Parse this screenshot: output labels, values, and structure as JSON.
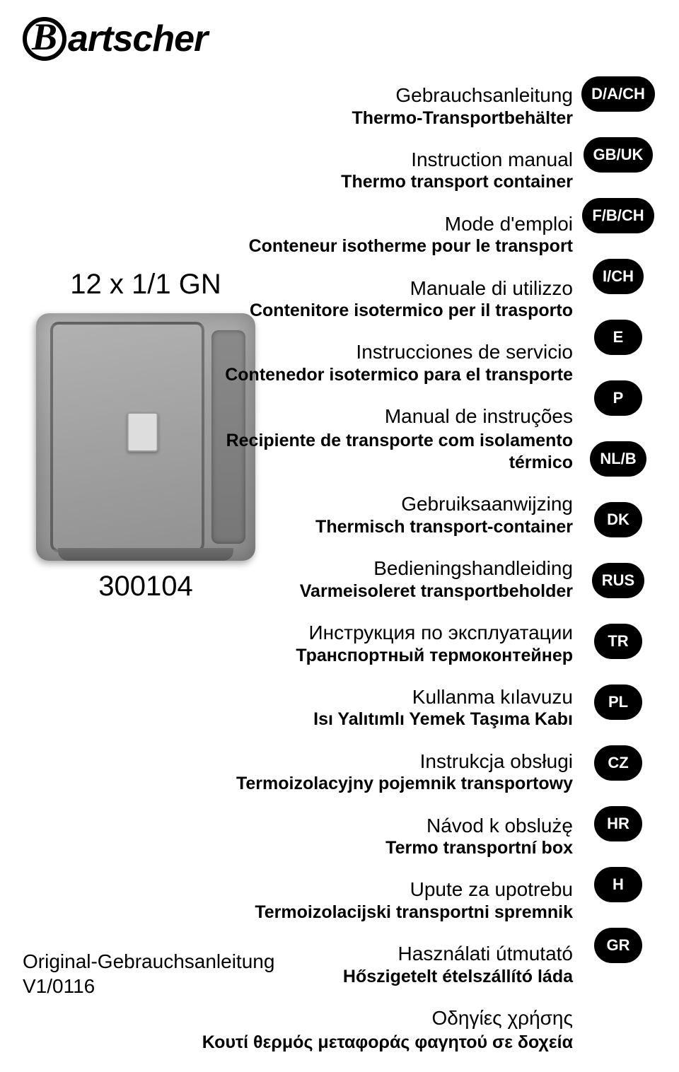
{
  "logo": {
    "mark": "B",
    "word": "artscher"
  },
  "product": {
    "model": "12 x 1/1 GN",
    "sku": "300104"
  },
  "footer": {
    "line1": "Original-Gebrauchsanleitung",
    "line2": "V1/0116"
  },
  "pills": [
    "D/A/CH",
    "GB/UK",
    "F/B/CH",
    "I/CH",
    "E",
    "P",
    "NL/B",
    "DK",
    "RUS",
    "TR",
    "PL",
    "CZ",
    "HR",
    "H",
    "GR"
  ],
  "colors": {
    "bg": "#ffffff",
    "text": "#000000",
    "pill_bg": "#000000",
    "pill_text": "#ffffff"
  },
  "fonts": {
    "body_family": "Arial",
    "logo_mark_family": "Georgia",
    "title_size": 28,
    "bold_size": 25,
    "pill_size": 22,
    "model_size": 40
  },
  "languages": [
    {
      "line1": "Gebrauchsanleitung",
      "line2": "Thermo-Transportbehälter"
    },
    {
      "line1": "Instruction manual",
      "line2": "Thermo transport container"
    },
    {
      "line1": "Mode d'emploi",
      "line2": "Conteneur isotherme pour le transport"
    },
    {
      "line1": "Manuale di utilizzo",
      "line2": "Contenitore isotermico per il trasporto"
    },
    {
      "line1": "Instrucciones de servicio",
      "line2": "Contenedor isotermico para el transporte"
    },
    {
      "line1": "Manual de instruções",
      "line2": "Recipiente de transporte com isolamento térmico"
    },
    {
      "line1": "Gebruiksaanwijzing",
      "line2": "Thermisch transport-container"
    },
    {
      "line1": "Bedieningshandleiding",
      "line2": "Varmeisoleret transportbeholder"
    },
    {
      "line1": "Инструкция по эксплуатации",
      "line2": "Транспортный термоконтейнер"
    },
    {
      "line1": "Kullanma kılavuzu",
      "line2": "Isı Yalıtımlı Yemek Taşıma Kabı"
    },
    {
      "line1": "Instrukcja obsługi",
      "line2": "Termoizolacyjny pojemnik transportowy"
    },
    {
      "line1": "Návod k obslużę",
      "line2": "Termo transportní box"
    },
    {
      "line1": "Upute za upotrebu",
      "line2": "Termoizolacijski transportni spremnik"
    },
    {
      "line1": "Használati útmutató",
      "line2": "Hőszigetelt ételszállító láda"
    },
    {
      "line1": "Οδηγίες χρήσης",
      "line2": "Κουτί θερμός μεταφοράς φαγητού σε δοχεία"
    }
  ]
}
